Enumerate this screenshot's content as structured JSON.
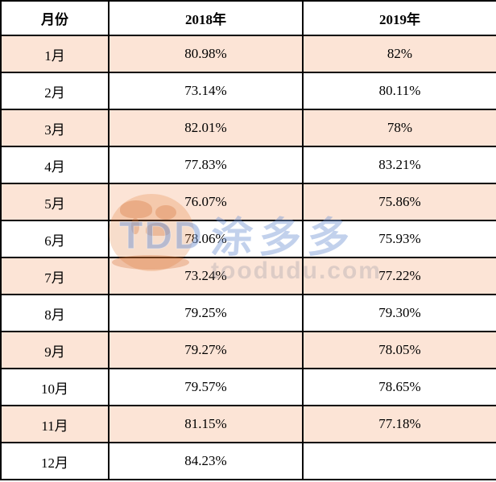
{
  "chart_data": {
    "type": "table",
    "columns": [
      "月份",
      "2018年",
      "2019年"
    ],
    "rows": [
      [
        "1月",
        "80.98%",
        "82%"
      ],
      [
        "2月",
        "73.14%",
        "80.11%"
      ],
      [
        "3月",
        "82.01%",
        "78%"
      ],
      [
        "4月",
        "77.83%",
        "83.21%"
      ],
      [
        "5月",
        "76.07%",
        "75.86%"
      ],
      [
        "6月",
        "78.06%",
        "75.93%"
      ],
      [
        "7月",
        "73.24%",
        "77.22%"
      ],
      [
        "8月",
        "79.25%",
        "79.30%"
      ],
      [
        "9月",
        "79.27%",
        "78.05%"
      ],
      [
        "10月",
        "79.57%",
        "78.65%"
      ],
      [
        "11月",
        "81.15%",
        "77.18%"
      ],
      [
        "12月",
        "84.23%",
        ""
      ]
    ],
    "layout_hints": {
      "highlighted_rows": [
        "1月",
        "3月",
        "5月",
        "7月",
        "9月",
        "11月"
      ],
      "grid": "on"
    }
  },
  "watermark": {
    "logo_text": "TDD",
    "brand_text": "涂多多",
    "site_text": "toodudu.com"
  },
  "colors": {
    "row_highlight": "#fce4d6",
    "row_white": "#ffffff",
    "grid_border": "#000000",
    "cell_text": "#000000",
    "watermark_blue": "#a8c0e4",
    "watermark_orange": "#f0b98e",
    "watermark_gray": "#d8d4d8"
  }
}
